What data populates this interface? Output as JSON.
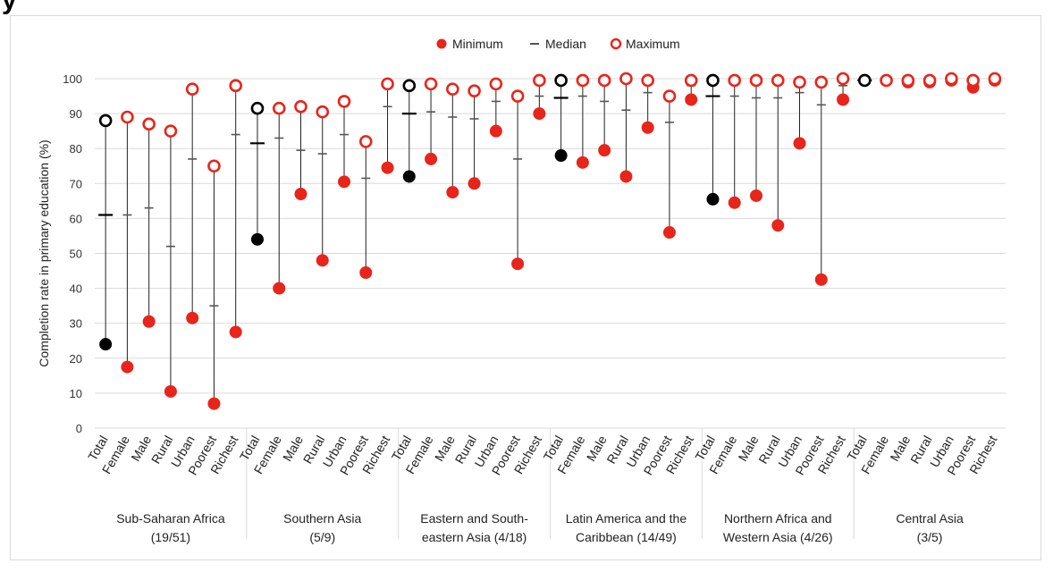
{
  "page": {
    "title_fragment": "y"
  },
  "chart_data": {
    "type": "dot-range",
    "ylabel": "Completion rate in primary education (%)",
    "ylim": [
      0,
      100
    ],
    "yticks": [
      0,
      10,
      20,
      30,
      40,
      50,
      60,
      70,
      80,
      90,
      100
    ],
    "grid": true,
    "legend": {
      "placement": "top-center",
      "entries": [
        {
          "key": "min",
          "label": "Minimum"
        },
        {
          "key": "median",
          "label": "Median"
        },
        {
          "key": "max",
          "label": "Maximum"
        }
      ]
    },
    "colors": {
      "accent": "#e8251b",
      "total": "#000000",
      "line": "#222222",
      "grid": "#d9d9d9",
      "median_sub": "#555555"
    },
    "categories": [
      "Total",
      "Female",
      "Male",
      "Rural",
      "Urban",
      "Poorest",
      "Richest"
    ],
    "groups": [
      {
        "label_line1": "Sub-Saharan Africa",
        "label_line2": "(19/51)",
        "points": [
          {
            "min": 24,
            "median": 61,
            "max": 88
          },
          {
            "min": 17.5,
            "median": 61,
            "max": 89
          },
          {
            "min": 30.5,
            "median": 63,
            "max": 87
          },
          {
            "min": 10.5,
            "median": 52,
            "max": 85
          },
          {
            "min": 31.5,
            "median": 77,
            "max": 97
          },
          {
            "min": 7,
            "median": 35,
            "max": 75
          },
          {
            "min": 27.5,
            "median": 84,
            "max": 98
          }
        ]
      },
      {
        "label_line1": "Southern Asia",
        "label_line2": "(5/9)",
        "points": [
          {
            "min": 54,
            "median": 81.5,
            "max": 91.5
          },
          {
            "min": 40,
            "median": 83,
            "max": 91.5
          },
          {
            "min": 67,
            "median": 79.5,
            "max": 92
          },
          {
            "min": 48,
            "median": 78.5,
            "max": 90.5
          },
          {
            "min": 70.5,
            "median": 84,
            "max": 93.5
          },
          {
            "min": 44.5,
            "median": 71.5,
            "max": 82
          },
          {
            "min": 74.5,
            "median": 92,
            "max": 98.5
          }
        ]
      },
      {
        "label_line1": "Eastern and South-",
        "label_line2": "eastern Asia (4/18)",
        "points": [
          {
            "min": 72,
            "median": 90,
            "max": 98
          },
          {
            "min": 77,
            "median": 90.5,
            "max": 98.5
          },
          {
            "min": 67.5,
            "median": 89,
            "max": 97
          },
          {
            "min": 70,
            "median": 88.5,
            "max": 96.5
          },
          {
            "min": 85,
            "median": 93.5,
            "max": 98.5
          },
          {
            "min": 47,
            "median": 77,
            "max": 95
          },
          {
            "min": 90,
            "median": 95,
            "max": 99.5
          }
        ]
      },
      {
        "label_line1": "Latin America and the",
        "label_line2": "Caribbean (14/49)",
        "points": [
          {
            "min": 78,
            "median": 94.5,
            "max": 99.5
          },
          {
            "min": 76,
            "median": 95,
            "max": 99.5
          },
          {
            "min": 79.5,
            "median": 93.5,
            "max": 99.5
          },
          {
            "min": 72,
            "median": 91,
            "max": 100
          },
          {
            "min": 86,
            "median": 96,
            "max": 99.5
          },
          {
            "min": 56,
            "median": 87.5,
            "max": 95
          },
          {
            "min": 94,
            "median": 98,
            "max": 99.5
          }
        ]
      },
      {
        "label_line1": "Northern Africa and",
        "label_line2": "Western Asia (4/26)",
        "points": [
          {
            "min": 65.5,
            "median": 95,
            "max": 99.5
          },
          {
            "min": 64.5,
            "median": 95,
            "max": 99.5
          },
          {
            "min": 66.5,
            "median": 94.5,
            "max": 99.5
          },
          {
            "min": 58,
            "median": 94.5,
            "max": 99.5
          },
          {
            "min": 81.5,
            "median": 96,
            "max": 99
          },
          {
            "min": 42.5,
            "median": 92.5,
            "max": 99
          },
          {
            "min": 94,
            "median": 98,
            "max": 100
          }
        ]
      },
      {
        "label_line1": "Central Asia",
        "label_line2": "(3/5)",
        "points": [
          {
            "min": 99.5,
            "median": 99.5,
            "max": 99.5
          },
          {
            "min": 99.5,
            "median": 99.5,
            "max": 99.5
          },
          {
            "min": 99,
            "median": 99.5,
            "max": 99.5
          },
          {
            "min": 99,
            "median": 99.5,
            "max": 99.5
          },
          {
            "min": 99.5,
            "median": 99.5,
            "max": 100
          },
          {
            "min": 97.5,
            "median": 99.5,
            "max": 99.5
          },
          {
            "min": 99.5,
            "median": 99.5,
            "max": 100
          }
        ]
      }
    ]
  }
}
